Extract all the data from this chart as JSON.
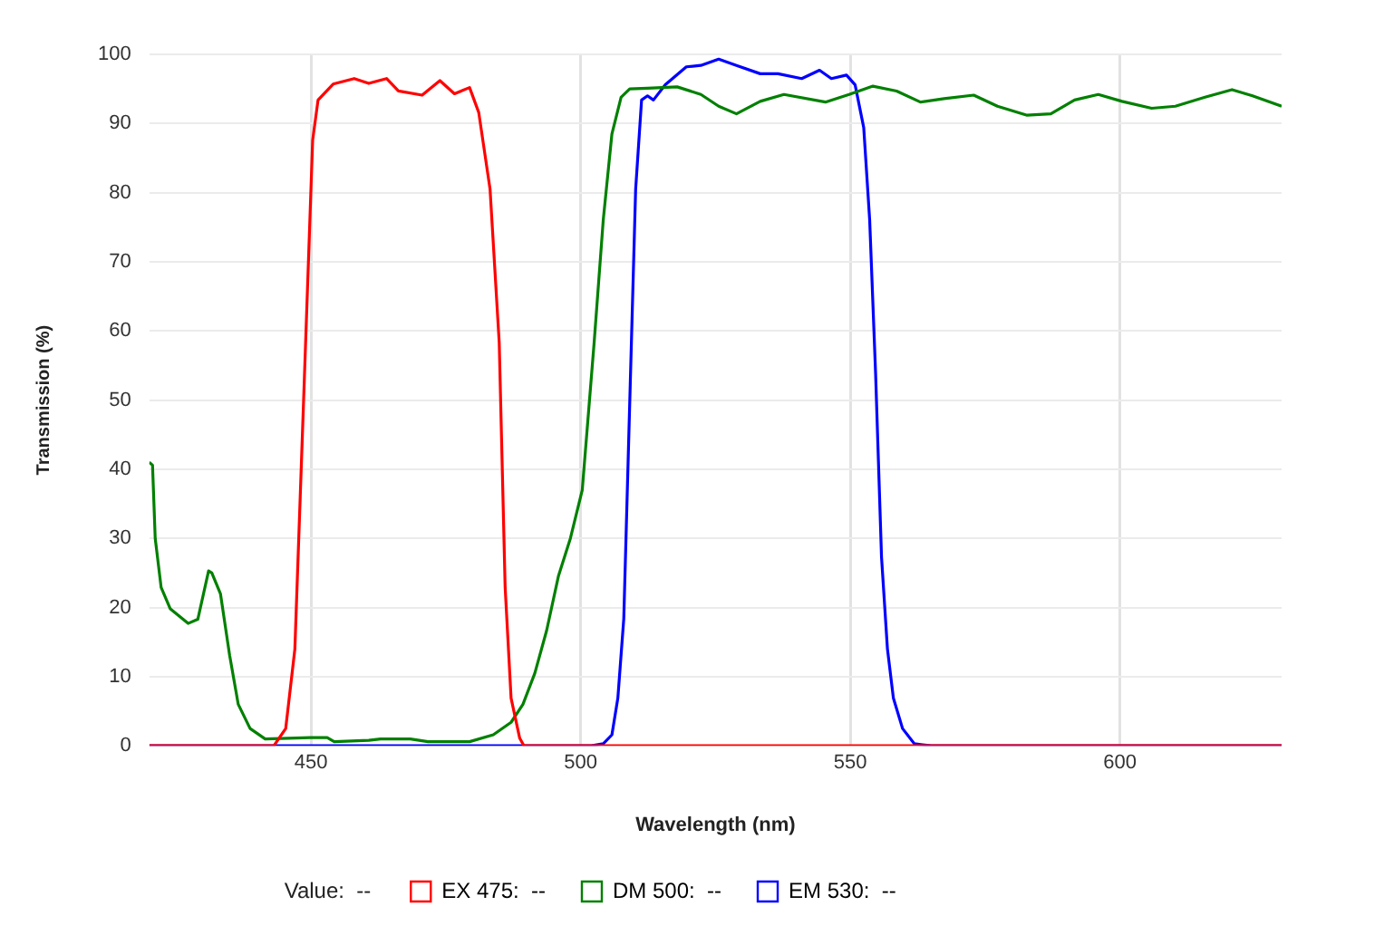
{
  "chart_data": {
    "type": "line",
    "xlabel": "Wavelength (nm)",
    "ylabel": "Transmission (%)",
    "xlim": [
      420,
      630
    ],
    "xticks": [
      450,
      500,
      550,
      600
    ],
    "ylim": [
      0,
      100
    ],
    "yticks": [
      0,
      10,
      20,
      30,
      40,
      50,
      60,
      70,
      80,
      90,
      100
    ],
    "grid": true,
    "legend": "bottom",
    "marker": "none",
    "line_style": "solid",
    "annotations": [
      "Value:  --"
    ],
    "series": [
      {
        "name": "EX 475:  --",
        "color": "#ff0000",
        "x": [
          420,
          443.1,
          445.3,
          447,
          448.6,
          450.3,
          451.3,
          454.1,
          458,
          460.7,
          464,
          466.2,
          470.6,
          473.9,
          476.6,
          479.4,
          481.1,
          483.2,
          484.9,
          486,
          487.1,
          488.7,
          489.5,
          630
        ],
        "values": [
          0,
          0,
          2.5,
          14,
          49.5,
          87.6,
          93.4,
          95.7,
          96.5,
          95.8,
          96.5,
          94.7,
          94.1,
          96.2,
          94.3,
          95.2,
          91.6,
          80.5,
          58.3,
          22.9,
          6.9,
          1.1,
          0,
          0
        ]
      },
      {
        "name": "DM 500:  --",
        "color": "#008000",
        "x": [
          420,
          420.6,
          421.1,
          422.2,
          423.9,
          427.2,
          429,
          431,
          431.6,
          433.2,
          434.9,
          436.5,
          438.7,
          441.5,
          449.8,
          453,
          454.3,
          460.7,
          462.9,
          468.4,
          471.7,
          479.4,
          483.8,
          487.1,
          489.3,
          491.5,
          493.7,
          495.9,
          498.1,
          500.3,
          502.5,
          504.2,
          505.8,
          507.5,
          509.1,
          512.4,
          517.9,
          522.3,
          525.6,
          528.9,
          533.3,
          537.7,
          545.4,
          549.8,
          554.2,
          558.6,
          563,
          567.4,
          572.9,
          577.3,
          582.8,
          587.2,
          591.6,
          596,
          600.4,
          605.9,
          610.3,
          615.8,
          620.8,
          624.6,
          630
        ],
        "values": [
          41,
          40.6,
          30,
          22.9,
          19.8,
          17.7,
          18.3,
          25.3,
          25,
          22,
          13.1,
          6,
          2.5,
          1,
          1.2,
          1.2,
          0.6,
          0.8,
          1,
          1,
          0.6,
          0.6,
          1.6,
          3.4,
          6,
          10.5,
          16.7,
          24.6,
          30,
          37,
          58.3,
          76.1,
          88.5,
          93.8,
          95,
          95.1,
          95.3,
          94.2,
          92.5,
          91.4,
          93.2,
          94.2,
          93.1,
          94.2,
          95.4,
          94.7,
          93.1,
          93.6,
          94.1,
          92.5,
          91.2,
          91.4,
          93.4,
          94.2,
          93.2,
          92.2,
          92.5,
          93.8,
          94.9,
          94,
          92.5
        ]
      },
      {
        "name": "EM 530:  --",
        "color": "#0000ff",
        "x": [
          420,
          502,
          504.2,
          505.8,
          506.9,
          508,
          509.1,
          510.2,
          511.3,
          512.4,
          513.5,
          515.7,
          519.6,
          522.3,
          525.6,
          528.9,
          533.3,
          536.6,
          541,
          544.3,
          546.5,
          549.3,
          550.9,
          552.5,
          553.6,
          554.7,
          555.8,
          556.9,
          558,
          559.7,
          561.9,
          565,
          630
        ],
        "values": [
          0,
          0,
          0.3,
          1.6,
          6.9,
          18.4,
          49.5,
          80.5,
          93.4,
          94,
          93.4,
          95.6,
          98.2,
          98.4,
          99.3,
          98.4,
          97.2,
          97.2,
          96.5,
          97.7,
          96.5,
          97,
          95.6,
          89.4,
          76.1,
          53.9,
          27.3,
          14,
          6.9,
          2.5,
          0.3,
          0,
          0
        ]
      }
    ]
  }
}
